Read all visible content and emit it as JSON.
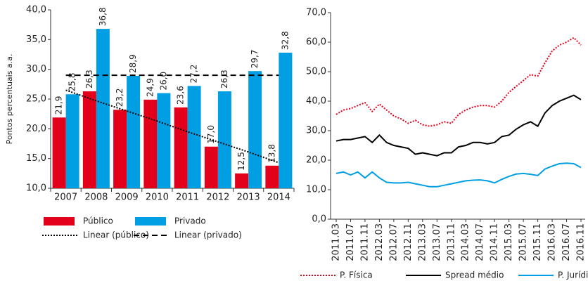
{
  "chart_data": [
    {
      "type": "bar",
      "y_label": "Pontos percentuais a.a.",
      "categories": [
        "2007",
        "2008",
        "2009",
        "2010",
        "2011",
        "2012",
        "2013",
        "2014"
      ],
      "ylim": [
        10,
        40
      ],
      "yticks": [
        {
          "value": 10,
          "label": "10,0"
        },
        {
          "value": 15,
          "label": "15,0"
        },
        {
          "value": 20,
          "label": "20,0"
        },
        {
          "value": 25,
          "label": "25,0"
        },
        {
          "value": 30,
          "label": "30,0"
        },
        {
          "value": 35,
          "label": "35,0"
        },
        {
          "value": 40,
          "label": "40,0"
        }
      ],
      "series": [
        {
          "name": "Público",
          "color": "#e3001b",
          "values": [
            21.9,
            26.3,
            23.2,
            24.9,
            23.6,
            17.0,
            12.5,
            13.8
          ],
          "value_labels": [
            "21,9",
            "26,3",
            "23,2",
            "24,9",
            "23,6",
            "17,0",
            "12,5",
            "13,8"
          ]
        },
        {
          "name": "Privado",
          "color": "#009fe3",
          "values": [
            25.8,
            36.8,
            28.9,
            26.0,
            27.2,
            26.3,
            29.7,
            32.8
          ],
          "value_labels": [
            "25,8",
            "36,8",
            "28,9",
            "26,0",
            "27,2",
            "26,3",
            "29,7",
            "32,8"
          ]
        },
        {
          "name": "Linear (público)",
          "type": "line",
          "style": "dotted",
          "color": "#000000",
          "values": [
            26.5,
            24.7,
            23.0,
            21.3,
            19.5,
            17.8,
            16.1,
            14.3
          ]
        },
        {
          "name": "Linear (privado)",
          "type": "line",
          "style": "dashed",
          "color": "#000000",
          "values": [
            29.0,
            29.0,
            29.0,
            29.0,
            29.0,
            29.0,
            29.0,
            29.0
          ]
        }
      ]
    },
    {
      "type": "line",
      "categories": [
        "2011.03",
        null,
        "2011.07",
        null,
        "2011.11",
        null,
        "2012.03",
        null,
        "2012.07",
        null,
        "2012.11",
        null,
        "2013.03",
        null,
        "2013.07",
        null,
        "2013.11",
        null,
        "2014.03",
        null,
        "2014.07",
        null,
        "2014.11",
        null,
        "2015.03",
        null,
        "2015.07",
        null,
        "2015.11",
        null,
        "2016.03",
        null,
        "2016.07",
        null,
        "2016.11"
      ],
      "ylim": [
        0,
        70
      ],
      "yticks": [
        {
          "value": 0,
          "label": "0,0"
        },
        {
          "value": 10,
          "label": "10,0"
        },
        {
          "value": 20,
          "label": "20,0"
        },
        {
          "value": 30,
          "label": "30,0"
        },
        {
          "value": 40,
          "label": "40,0"
        },
        {
          "value": 50,
          "label": "50,0"
        },
        {
          "value": 60,
          "label": "60,0"
        },
        {
          "value": 70,
          "label": "70,0"
        }
      ],
      "series": [
        {
          "name": "P. Física",
          "style": "dotted",
          "color": "#e3001b",
          "values": [
            35.5,
            37,
            37.5,
            38.5,
            39.5,
            36.5,
            39,
            37,
            35,
            34,
            32.5,
            33.5,
            32,
            31.5,
            32,
            33,
            32.5,
            35.5,
            37,
            38,
            38.5,
            38.5,
            38,
            40,
            43,
            45,
            47,
            49,
            48.5,
            53,
            57,
            59,
            60,
            61.5,
            59
          ]
        },
        {
          "name": "Spread médio",
          "style": "solid",
          "color": "#000000",
          "values": [
            26.5,
            27,
            27,
            27.5,
            28,
            26,
            28.5,
            26,
            25,
            24.5,
            24,
            22,
            22.5,
            22,
            21.5,
            22.5,
            22.5,
            24.5,
            25,
            26,
            26,
            25.5,
            26,
            28,
            28.5,
            30.5,
            32,
            33,
            31.5,
            36,
            38.5,
            40,
            41,
            42,
            40.5
          ]
        },
        {
          "name": "P. Jurídica",
          "style": "solid",
          "color": "#009fe3",
          "values": [
            15.5,
            16,
            15,
            16,
            14,
            16,
            14,
            12.5,
            12.3,
            12.3,
            12.5,
            12,
            11.5,
            11,
            11,
            11.5,
            12,
            12.5,
            13,
            13.2,
            13.3,
            13,
            12.3,
            13.5,
            14.5,
            15.3,
            15.5,
            15.2,
            14.8,
            17,
            18,
            18.8,
            19,
            18.8,
            17.5
          ]
        }
      ]
    }
  ]
}
